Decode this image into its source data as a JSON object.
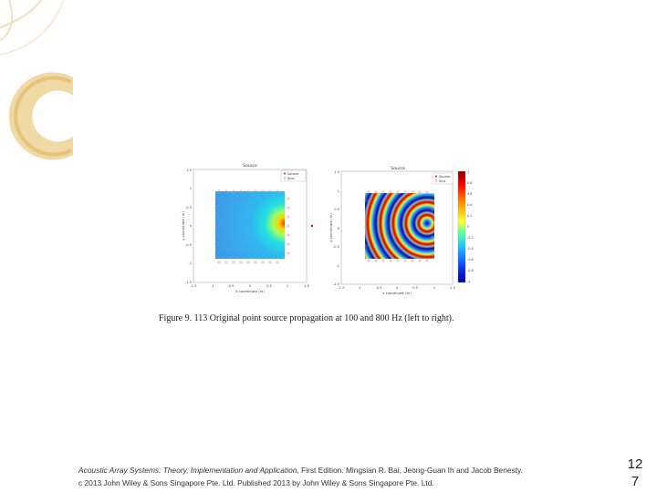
{
  "figure": {
    "left_panel": {
      "title": "Source",
      "legend": [
        "Source",
        "Sink"
      ],
      "xlabel": "x-coordinate (m)",
      "ylabel": "y-coordinate (m)",
      "xticks": [
        "-1.5",
        "-1",
        "-0.5",
        "0",
        "0.5",
        "1",
        "1.5"
      ],
      "yticks": [
        "1.5",
        "1",
        "0.5",
        "0",
        "-0.5",
        "-1",
        "-1.5"
      ]
    },
    "right_panel": {
      "title": "Source",
      "legend": [
        "Source",
        "Sink"
      ],
      "xlabel": "x-coordinate (m)",
      "ylabel": "y-coordinate (m)",
      "xticks": [
        "-1.5",
        "-1",
        "-0.5",
        "0",
        "0.5",
        "1",
        "1.5"
      ],
      "yticks": [
        "1.5",
        "1",
        "0.5",
        "0",
        "-0.5",
        "-1",
        "-1.5"
      ]
    },
    "colorbar_ticks": [
      "1",
      "0.8",
      "0.6",
      "0.4",
      "0.2",
      "0",
      "-0.2",
      "-0.4",
      "-0.6",
      "-0.8",
      "-1"
    ],
    "colors": {
      "source": "#c0161c",
      "sink": "#e07070"
    }
  },
  "caption": "Figure 9. 113 Original point source propagation at 100 and 800 Hz (left to right).",
  "footer": {
    "book_title": "Acoustic Array Systems: Theory, Implementation and Application",
    "line1_rest": ", First Edition. Mingsian R. Bai, Jeong-Guan Ih and Jacob Benesty.",
    "line2": "c 2013 John Wiley & Sons Singapore Pte. Ltd. Published 2013 by John Wiley & Sons Singapore Pte. Ltd."
  },
  "page_number": {
    "line1": "12",
    "line2": "7"
  }
}
